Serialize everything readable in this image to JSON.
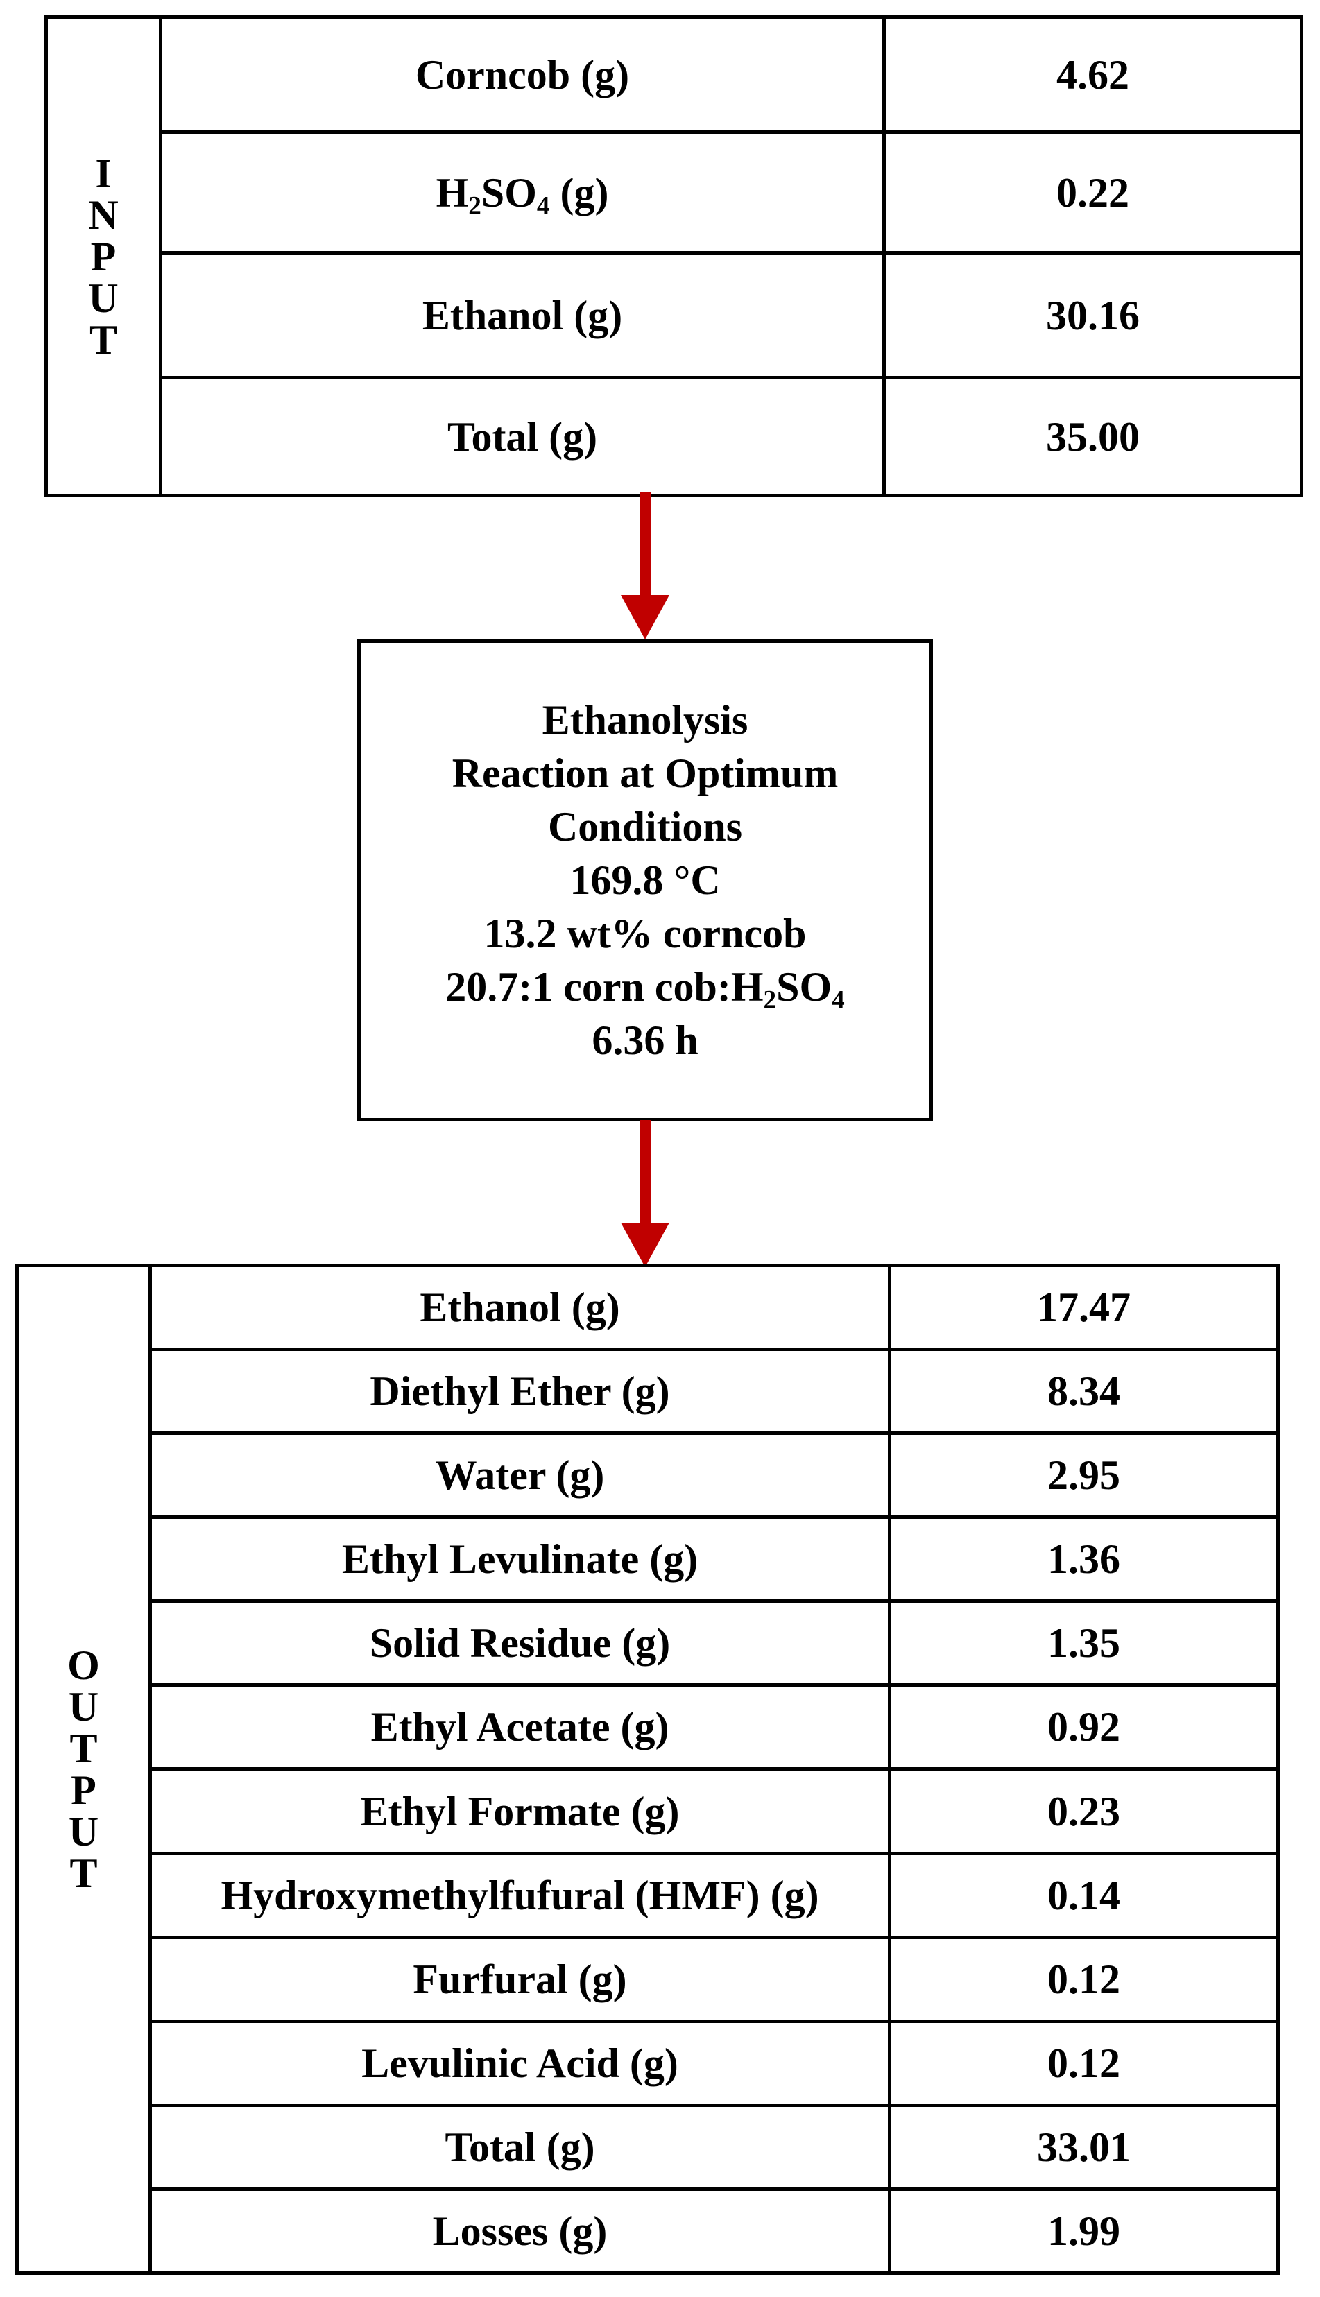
{
  "input": {
    "side_label": [
      "I",
      "N",
      "P",
      "U",
      "T"
    ],
    "rows": [
      {
        "label": "Corncob (g)",
        "value": "4.62"
      },
      {
        "label": "Total (g)",
        "value": "35.00"
      }
    ],
    "acid_row": {
      "label_pre": "H",
      "sub1": "2",
      "label_mid": "SO",
      "sub2": "4",
      "label_post": " (g)",
      "value": "0.22"
    },
    "ethanol_row": {
      "label": "Ethanol (g)",
      "value": "30.16"
    }
  },
  "process": {
    "line1": "Ethanolysis",
    "line2": "Reaction at Optimum",
    "line3": "Conditions",
    "temperature": "169.8 °C",
    "loading": "13.2 wt% corncob",
    "ratio_pre": "20.7:1 corn cob:H",
    "ratio_sub1": "2",
    "ratio_mid": "SO",
    "ratio_sub2": "4",
    "time": "6.36 h"
  },
  "output": {
    "side_label": [
      "O",
      "U",
      "T",
      "P",
      "U",
      "T"
    ],
    "rows": [
      {
        "label": "Ethanol (g)",
        "value": "17.47"
      },
      {
        "label": "Diethyl Ether (g)",
        "value": "8.34"
      },
      {
        "label": "Water (g)",
        "value": "2.95"
      },
      {
        "label": "Ethyl Levulinate (g)",
        "value": "1.36"
      },
      {
        "label": "Solid Residue (g)",
        "value": "1.35"
      },
      {
        "label": "Ethyl Acetate (g)",
        "value": "0.92"
      },
      {
        "label": "Ethyl Formate (g)",
        "value": "0.23"
      },
      {
        "label": "Hydroxymethylfufural (HMF) (g)",
        "value": "0.14"
      },
      {
        "label": "Furfural (g)",
        "value": "0.12"
      },
      {
        "label": "Levulinic Acid (g)",
        "value": "0.12"
      },
      {
        "label": "Total (g)",
        "value": "33.01"
      },
      {
        "label": "Losses (g)",
        "value": "1.99"
      }
    ]
  },
  "colors": {
    "arrow": "#c00000",
    "line": "#000000",
    "background": "#ffffff"
  }
}
